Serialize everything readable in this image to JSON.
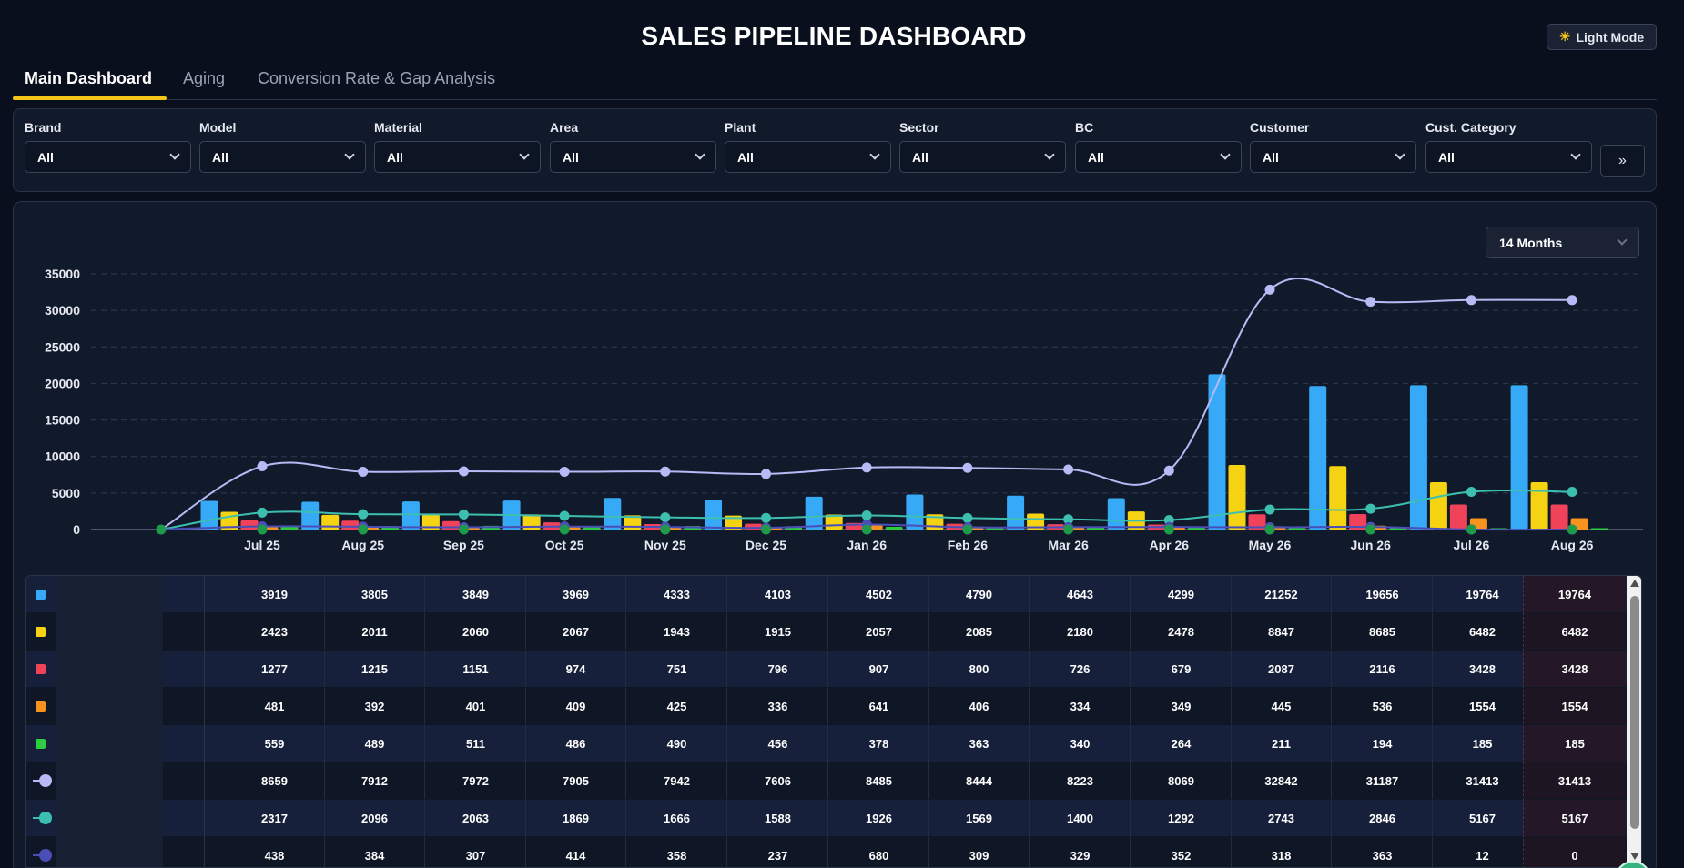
{
  "header": {
    "title": "SALES PIPELINE DASHBOARD",
    "mode_label": "Light Mode",
    "mode_icon": "sun-icon"
  },
  "tabs": [
    {
      "label": "Main Dashboard",
      "active": true
    },
    {
      "label": "Aging",
      "active": false
    },
    {
      "label": "Conversion Rate & Gap Analysis",
      "active": false
    }
  ],
  "filters": [
    {
      "label": "Brand",
      "value": "All"
    },
    {
      "label": "Model",
      "value": "All"
    },
    {
      "label": "Material",
      "value": "All"
    },
    {
      "label": "Area",
      "value": "All"
    },
    {
      "label": "Plant",
      "value": "All"
    },
    {
      "label": "Sector",
      "value": "All"
    },
    {
      "label": "BC",
      "value": "All"
    },
    {
      "label": "Customer",
      "value": "All"
    },
    {
      "label": "Cust. Category",
      "value": "All"
    }
  ],
  "filters_more_label": "»",
  "range_select": {
    "value": "14 Months"
  },
  "chart_data": {
    "type": "bar",
    "title": "",
    "xlabel": "",
    "ylabel": "",
    "ylim": [
      0,
      35000
    ],
    "yticks": [
      0,
      5000,
      10000,
      15000,
      20000,
      25000,
      30000,
      35000
    ],
    "grid": true,
    "categories": [
      "Jul 25",
      "Aug 25",
      "Sep 25",
      "Oct 25",
      "Nov 25",
      "Dec 25",
      "Jan 26",
      "Feb 26",
      "Mar 26",
      "Apr 26",
      "May 26",
      "Jun 26",
      "Jul 26",
      "Aug 26"
    ],
    "series": [
      {
        "type": "bar",
        "color": "#36a9f7",
        "values": [
          3919,
          3805,
          3849,
          3969,
          4333,
          4103,
          4502,
          4790,
          4643,
          4299,
          21252,
          19656,
          19764,
          19764
        ]
      },
      {
        "type": "bar",
        "color": "#f5d312",
        "values": [
          2423,
          2011,
          2060,
          2067,
          1943,
          1915,
          2057,
          2085,
          2180,
          2478,
          8847,
          8685,
          6482,
          6482
        ]
      },
      {
        "type": "bar",
        "color": "#f0435a",
        "values": [
          1277,
          1215,
          1151,
          974,
          751,
          796,
          907,
          800,
          726,
          679,
          2087,
          2116,
          3428,
          3428
        ]
      },
      {
        "type": "bar",
        "color": "#f7931e",
        "values": [
          481,
          392,
          401,
          409,
          425,
          336,
          641,
          406,
          334,
          349,
          445,
          536,
          1554,
          1554
        ]
      },
      {
        "type": "bar",
        "color": "#2ecc40",
        "values": [
          559,
          489,
          511,
          486,
          490,
          456,
          378,
          363,
          340,
          264,
          211,
          194,
          185,
          185
        ]
      },
      {
        "type": "line",
        "color": "#b8b9f5",
        "values": [
          8659,
          7912,
          7972,
          7905,
          7942,
          7606,
          8485,
          8444,
          8223,
          8069,
          32842,
          31187,
          31413,
          31413
        ]
      },
      {
        "type": "line",
        "color": "#3dbfb0",
        "values": [
          2317,
          2096,
          2063,
          1869,
          1666,
          1588,
          1926,
          1569,
          1400,
          1292,
          2743,
          2846,
          5167,
          5167
        ]
      },
      {
        "type": "line",
        "color": "#4a4fb8",
        "values": [
          438,
          384,
          307,
          414,
          358,
          237,
          680,
          309,
          329,
          352,
          318,
          363,
          12,
          0
        ]
      }
    ]
  }
}
